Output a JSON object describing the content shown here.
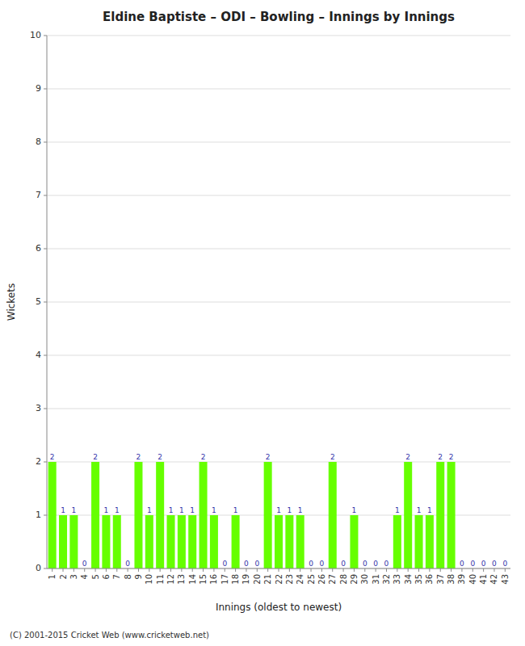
{
  "chart_data": {
    "type": "bar",
    "title": "Eldine Baptiste – ODI – Bowling – Innings by Innings",
    "x_label": "Innings (oldest to newest)",
    "y_label": "Wickets",
    "annotations": [
      "(C) 2001-2015 Cricket Web (www.cricketweb.net)"
    ],
    "categories": [
      1,
      2,
      3,
      4,
      5,
      6,
      7,
      8,
      9,
      10,
      11,
      12,
      13,
      14,
      15,
      16,
      17,
      18,
      19,
      20,
      21,
      22,
      23,
      24,
      25,
      26,
      27,
      28,
      29,
      30,
      31,
      32,
      33,
      34,
      35,
      36,
      37,
      38,
      39,
      40,
      41,
      42,
      43
    ],
    "values": [
      2,
      1,
      1,
      0,
      2,
      1,
      1,
      0,
      2,
      1,
      2,
      1,
      1,
      1,
      2,
      1,
      0,
      1,
      0,
      0,
      2,
      1,
      1,
      1,
      0,
      0,
      2,
      0,
      1,
      0,
      0,
      0,
      1,
      2,
      1,
      1,
      2,
      2,
      0,
      0,
      0,
      0,
      0
    ],
    "color": "#66ff00",
    "ylim": [
      0,
      10
    ],
    "yticks": [
      0,
      1,
      2,
      3,
      4,
      5,
      6,
      7,
      8,
      9,
      10
    ],
    "grid": true,
    "data_labels": true
  }
}
